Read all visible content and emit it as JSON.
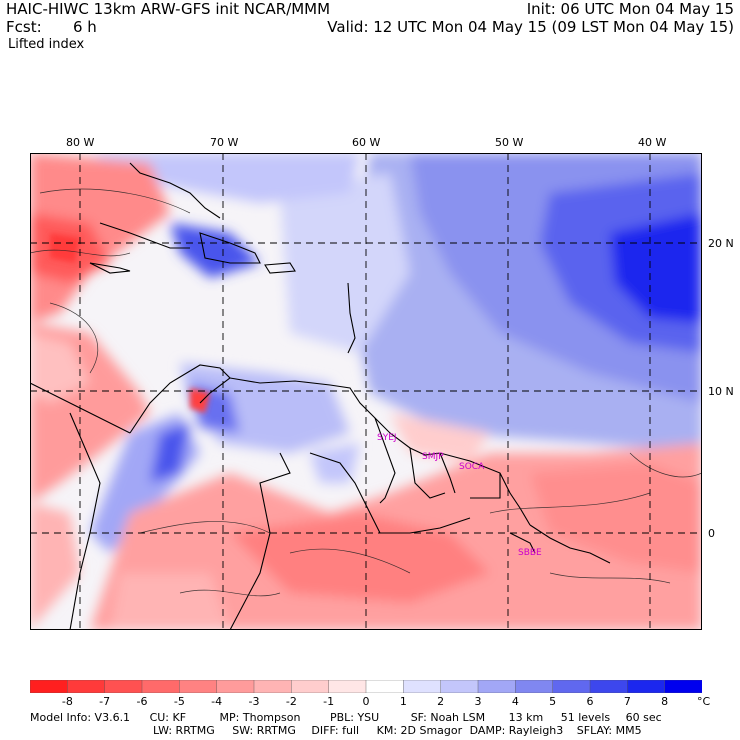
{
  "header": {
    "title_left": "HAIC-HIWC 13km ARW-GFS init   NCAR/MMM",
    "title_right": "Init: 06 UTC Mon 04 May 15",
    "fcst_label": "Fcst:",
    "fcst_value": "6 h",
    "valid_line": "Valid: 12 UTC Mon 04 May 15 (09 LST Mon 04 May 15)",
    "field_name": "Lifted index"
  },
  "map": {
    "lon_labels": [
      "80 W",
      "70 W",
      "60 W",
      "50 W",
      "40 W"
    ],
    "lat_labels": [
      "20 N",
      "10 N",
      "0"
    ],
    "stations": [
      "SYEJ",
      "SMJP",
      "SOCA",
      "SBBE"
    ],
    "colors": {
      "positive": "#0000ee",
      "negative": "#ff2020",
      "neutral": "#ffffff",
      "station": "#cc00cc"
    }
  },
  "colorbar": {
    "labels": [
      "-8",
      "-7",
      "-6",
      "-5",
      "-4",
      "-3",
      "-2",
      "-1",
      "0",
      "1",
      "2",
      "3",
      "4",
      "5",
      "6",
      "7",
      "8"
    ],
    "unit": "°C",
    "colors": [
      "#ff1f1f",
      "#ff3a3a",
      "#ff5151",
      "#ff6a6a",
      "#ff8282",
      "#ff9b9b",
      "#ffb4b4",
      "#ffcdcd",
      "#ffe6e6",
      "#ffffff",
      "#dfe1ff",
      "#c3c6fb",
      "#a2a7f6",
      "#8087f1",
      "#6068ef",
      "#3d47ed",
      "#1c27ee",
      "#0000ee"
    ]
  },
  "footer": {
    "line1": [
      "Model Info: V3.6.1",
      "CU: KF",
      "MP: Thompson",
      "PBL: YSU",
      "SF: Noah LSM",
      "13 km",
      "51 levels",
      "60 sec"
    ],
    "line2": [
      "LW: RRTMG",
      "SW: RRTMG",
      "DIFF: full",
      "KM: 2D Smagor",
      "DAMP: Rayleigh3",
      "SFLAY: MM5"
    ]
  }
}
